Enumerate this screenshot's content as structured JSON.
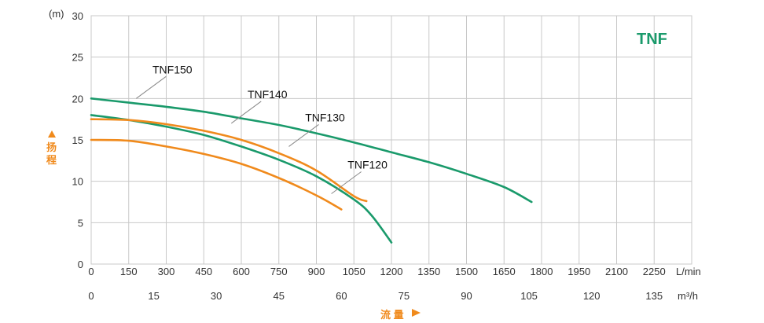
{
  "chart_data": {
    "type": "line",
    "badge": "TNF",
    "y_unit": "(m)",
    "y_title_chars": [
      "扬",
      "程"
    ],
    "x_title": "流 量",
    "x_unit_lmin": "L/min",
    "x_unit_m3h": "m³/h",
    "ylim": [
      0,
      30
    ],
    "xlim": [
      0,
      2400
    ],
    "y_ticks": [
      0,
      5,
      10,
      15,
      20,
      25,
      30
    ],
    "x_ticks_lmin": [
      0,
      150,
      300,
      450,
      600,
      750,
      900,
      1050,
      1200,
      1350,
      1500,
      1650,
      1800,
      1950,
      2100,
      2250
    ],
    "x_ticks_m3h": [
      0,
      15,
      30,
      45,
      60,
      75,
      90,
      105,
      120,
      135
    ],
    "grid": true,
    "colors": {
      "green": "#1a9a6b",
      "orange": "#f08a1c",
      "grid": "#c8c8c8",
      "badge": "#1a9a6b",
      "axis_title": "#f08a1c"
    },
    "series": [
      {
        "name": "TNF150",
        "color": "green",
        "points": [
          [
            0,
            20
          ],
          [
            150,
            19.5
          ],
          [
            300,
            19
          ],
          [
            450,
            18.4
          ],
          [
            600,
            17.6
          ],
          [
            750,
            16.8
          ],
          [
            900,
            15.8
          ],
          [
            1050,
            14.7
          ],
          [
            1200,
            13.5
          ],
          [
            1350,
            12.3
          ],
          [
            1500,
            10.9
          ],
          [
            1650,
            9.3
          ],
          [
            1760,
            7.5
          ]
        ],
        "label_at": [
          180,
          20
        ]
      },
      {
        "name": "TNF140",
        "color": "green",
        "points": [
          [
            0,
            18
          ],
          [
            150,
            17.4
          ],
          [
            300,
            16.6
          ],
          [
            450,
            15.6
          ],
          [
            600,
            14.2
          ],
          [
            750,
            12.6
          ],
          [
            900,
            10.6
          ],
          [
            1050,
            7.8
          ],
          [
            1120,
            5.9
          ],
          [
            1200,
            2.6
          ]
        ],
        "label_at": [
          560,
          17
        ]
      },
      {
        "name": "TNF130",
        "color": "orange",
        "points": [
          [
            0,
            17.5
          ],
          [
            150,
            17.4
          ],
          [
            300,
            16.9
          ],
          [
            450,
            16.1
          ],
          [
            600,
            15
          ],
          [
            750,
            13.4
          ],
          [
            900,
            11.3
          ],
          [
            1050,
            8.2
          ],
          [
            1100,
            7.6
          ]
        ],
        "label_at": [
          790,
          14.2
        ]
      },
      {
        "name": "TNF120",
        "color": "orange",
        "points": [
          [
            0,
            15
          ],
          [
            150,
            14.9
          ],
          [
            300,
            14.2
          ],
          [
            450,
            13.3
          ],
          [
            600,
            12.1
          ],
          [
            750,
            10.4
          ],
          [
            900,
            8.3
          ],
          [
            1000,
            6.6
          ]
        ],
        "label_at": [
          960,
          8.5
        ]
      }
    ]
  }
}
